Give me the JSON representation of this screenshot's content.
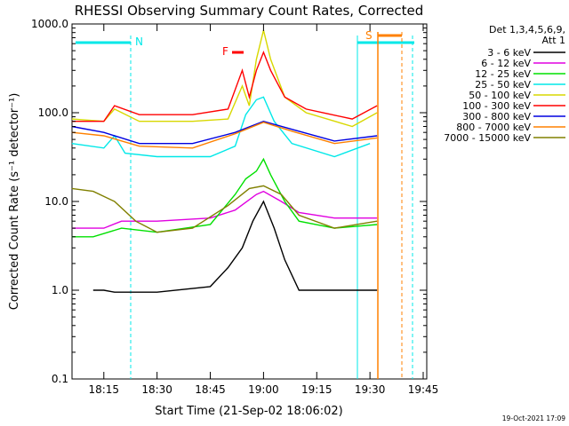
{
  "chart_data": {
    "type": "line",
    "title": "RHESSI Observing Summary Count Rates, Corrected",
    "xlabel": "Start Time (21-Sep-02 18:06:02)",
    "ylabel": "Corrected Count Rate (s⁻¹ detector⁻¹)",
    "ylog": true,
    "ylim": [
      0.1,
      1000
    ],
    "xlim": [
      "18:06:02",
      "19:46:00"
    ],
    "x_ticks": [
      "18:15",
      "18:30",
      "18:45",
      "19:00",
      "19:15",
      "19:30",
      "19:45"
    ],
    "y_ticks": [
      "0.1",
      "1.0",
      "10.0",
      "100.0",
      "1000.0"
    ],
    "footer": "19-Oct-2021 17:09",
    "legend": {
      "placement": "right",
      "header": [
        "Det 1,3,4,5,6,9,",
        "Att 1"
      ]
    },
    "series": [
      {
        "name": "3 - 6 keV",
        "color": "#000000",
        "points": [
          [
            "18:12",
            1.0
          ],
          [
            "18:15",
            1.0
          ],
          [
            "18:18",
            0.95
          ],
          [
            "18:30",
            0.95
          ],
          [
            "18:45",
            1.1
          ],
          [
            "18:50",
            1.8
          ],
          [
            "18:54",
            3.0
          ],
          [
            "18:57",
            6.0
          ],
          [
            "19:00",
            10.0
          ],
          [
            "19:03",
            5.0
          ],
          [
            "19:06",
            2.2
          ],
          [
            "19:10",
            1.0
          ],
          [
            "19:20",
            1.0
          ],
          [
            "19:32",
            1.0
          ]
        ]
      },
      {
        "name": "6 - 12 keV",
        "color": "#e000e0",
        "points": [
          [
            "18:06",
            5.0
          ],
          [
            "18:15",
            5.0
          ],
          [
            "18:20",
            6.0
          ],
          [
            "18:30",
            6.0
          ],
          [
            "18:45",
            6.5
          ],
          [
            "18:52",
            8.0
          ],
          [
            "18:58",
            12.0
          ],
          [
            "19:00",
            13.0
          ],
          [
            "19:05",
            10.0
          ],
          [
            "19:10",
            7.5
          ],
          [
            "19:20",
            6.5
          ],
          [
            "19:32",
            6.5
          ]
        ]
      },
      {
        "name": "12 - 25 keV",
        "color": "#00e000",
        "points": [
          [
            "18:06",
            4.0
          ],
          [
            "18:12",
            4.0
          ],
          [
            "18:20",
            5.0
          ],
          [
            "18:30",
            4.5
          ],
          [
            "18:45",
            5.5
          ],
          [
            "18:52",
            12.0
          ],
          [
            "18:55",
            18.0
          ],
          [
            "18:58",
            22.0
          ],
          [
            "19:00",
            30.0
          ],
          [
            "19:02",
            20.0
          ],
          [
            "19:06",
            10.0
          ],
          [
            "19:10",
            6.0
          ],
          [
            "19:20",
            5.0
          ],
          [
            "19:32",
            5.5
          ]
        ]
      },
      {
        "name": "25 - 50 keV",
        "color": "#00e8e8",
        "points": [
          [
            "18:06",
            45.0
          ],
          [
            "18:15",
            40.0
          ],
          [
            "18:18",
            55.0
          ],
          [
            "18:21",
            35.0
          ],
          [
            "18:30",
            32.0
          ],
          [
            "18:45",
            32.0
          ],
          [
            "18:52",
            42.0
          ],
          [
            "18:55",
            95.0
          ],
          [
            "18:58",
            140.0
          ],
          [
            "19:00",
            150.0
          ],
          [
            "19:03",
            80.0
          ],
          [
            "19:08",
            45.0
          ],
          [
            "19:20",
            32.0
          ],
          [
            "19:30",
            45.0
          ]
        ]
      },
      {
        "name": "50 - 100 keV",
        "color": "#d8d800",
        "points": [
          [
            "18:06",
            85.0
          ],
          [
            "18:15",
            80.0
          ],
          [
            "18:18",
            110.0
          ],
          [
            "18:25",
            80.0
          ],
          [
            "18:40",
            80.0
          ],
          [
            "18:50",
            85.0
          ],
          [
            "18:54",
            200.0
          ],
          [
            "18:56",
            120.0
          ],
          [
            "18:58",
            400.0
          ],
          [
            "19:00",
            850.0
          ],
          [
            "19:02",
            400.0
          ],
          [
            "19:06",
            150.0
          ],
          [
            "19:12",
            100.0
          ],
          [
            "19:25",
            70.0
          ],
          [
            "19:32",
            100.0
          ]
        ]
      },
      {
        "name": "100 - 300 keV",
        "color": "#ff0000",
        "points": [
          [
            "18:06",
            80.0
          ],
          [
            "18:15",
            80.0
          ],
          [
            "18:18",
            120.0
          ],
          [
            "18:25",
            95.0
          ],
          [
            "18:40",
            95.0
          ],
          [
            "18:50",
            110.0
          ],
          [
            "18:54",
            300.0
          ],
          [
            "18:56",
            150.0
          ],
          [
            "18:58",
            300.0
          ],
          [
            "19:00",
            480.0
          ],
          [
            "19:02",
            300.0
          ],
          [
            "19:06",
            150.0
          ],
          [
            "19:12",
            110.0
          ],
          [
            "19:25",
            85.0
          ],
          [
            "19:32",
            120.0
          ]
        ]
      },
      {
        "name": "300 - 800 keV",
        "color": "#0000e0",
        "points": [
          [
            "18:06",
            70.0
          ],
          [
            "18:15",
            60.0
          ],
          [
            "18:25",
            45.0
          ],
          [
            "18:40",
            45.0
          ],
          [
            "18:52",
            60.0
          ],
          [
            "19:00",
            80.0
          ],
          [
            "19:08",
            65.0
          ],
          [
            "19:20",
            48.0
          ],
          [
            "19:32",
            55.0
          ]
        ]
      },
      {
        "name": "800 - 7000 keV",
        "color": "#ff8000",
        "points": [
          [
            "18:06",
            60.0
          ],
          [
            "18:15",
            55.0
          ],
          [
            "18:25",
            42.0
          ],
          [
            "18:40",
            40.0
          ],
          [
            "18:52",
            58.0
          ],
          [
            "19:00",
            78.0
          ],
          [
            "19:08",
            62.0
          ],
          [
            "19:20",
            45.0
          ],
          [
            "19:32",
            52.0
          ]
        ]
      },
      {
        "name": "7000 - 15000 keV",
        "color": "#808000",
        "points": [
          [
            "18:06",
            14.0
          ],
          [
            "18:12",
            13.0
          ],
          [
            "18:18",
            10.0
          ],
          [
            "18:24",
            6.0
          ],
          [
            "18:30",
            4.5
          ],
          [
            "18:40",
            5.0
          ],
          [
            "18:50",
            9.0
          ],
          [
            "18:56",
            14.0
          ],
          [
            "19:00",
            15.0
          ],
          [
            "19:05",
            12.0
          ],
          [
            "19:10",
            7.0
          ],
          [
            "19:20",
            5.0
          ],
          [
            "19:32",
            6.0
          ]
        ]
      }
    ],
    "annotations": {
      "night_marker": "N",
      "saa_marker": "S",
      "flare_marker": "F"
    }
  }
}
